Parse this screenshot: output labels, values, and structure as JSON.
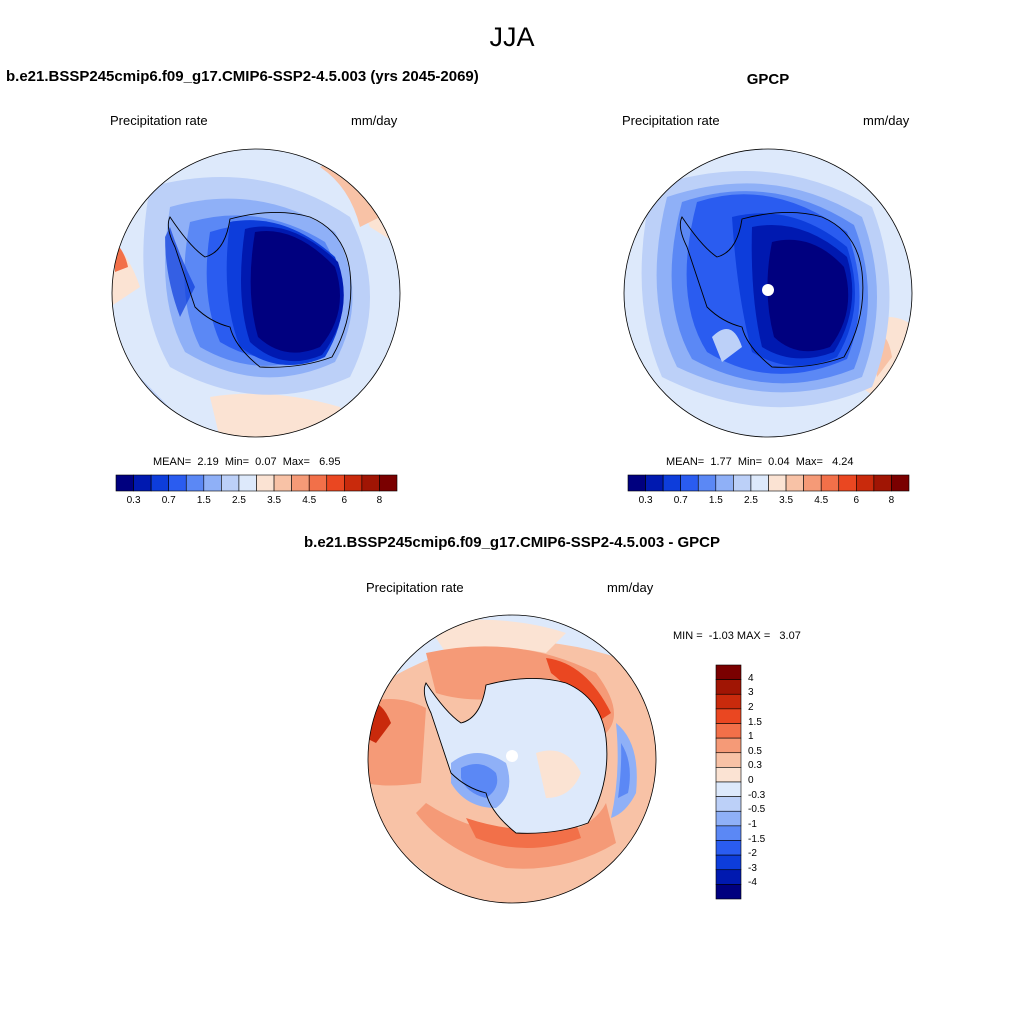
{
  "main_title": "JJA",
  "panels": [
    {
      "title": "b.e21.BSSP245cmip6.f09_g17.CMIP6-SSP2-4.5.003 (yrs 2045-2069)",
      "variable": "Precipitation rate",
      "units": "mm/day",
      "stats": {
        "mean_label": "MEAN=",
        "mean": "2.19",
        "min_label": "Min=",
        "min": "0.07",
        "max_label": "Max=",
        "max": "6.95"
      }
    },
    {
      "title": "GPCP",
      "variable": "Precipitation rate",
      "units": "mm/day",
      "stats": {
        "mean_label": "MEAN=",
        "mean": "1.77",
        "min_label": "Min=",
        "min": "0.04",
        "max_label": "Max=",
        "max": "4.24"
      }
    },
    {
      "title": "b.e21.BSSP245cmip6.f09_g17.CMIP6-SSP2-4.5.003 - GPCP",
      "variable": "Precipitation rate",
      "units": "mm/day",
      "stats": {
        "min_label": "MIN =",
        "min": "-1.03",
        "max_label": "MAX =",
        "max": "3.07"
      }
    }
  ],
  "colorbar_abs": {
    "colors": [
      "#00007f",
      "#0019b0",
      "#0d3ddb",
      "#2a5cf0",
      "#5b88f5",
      "#8fb0f7",
      "#bcd0f8",
      "#dde9fb",
      "#fbe3d3",
      "#f8c2a6",
      "#f59a77",
      "#f27049",
      "#ea4721",
      "#c92a0c",
      "#a01504",
      "#7a0000"
    ],
    "tick_labels": [
      "0.3",
      "0.7",
      "1.5",
      "2.5",
      "3.5",
      "4.5",
      "6",
      "8"
    ]
  },
  "colorbar_diff": {
    "colors": [
      "#7a0000",
      "#a01504",
      "#c92a0c",
      "#ea4721",
      "#f27049",
      "#f59a77",
      "#f8c2a6",
      "#fbe3d3",
      "#dde9fb",
      "#bcd0f8",
      "#8fb0f7",
      "#5b88f5",
      "#2a5cf0",
      "#0d3ddb",
      "#0019b0",
      "#00007f"
    ],
    "tick_labels": [
      "4",
      "3",
      "2",
      "1.5",
      "1",
      "0.5",
      "0.3",
      "0",
      "-0.3",
      "-0.5",
      "-1",
      "-1.5",
      "-2",
      "-3",
      "-4"
    ]
  },
  "chart_data": [
    {
      "type": "heatmap",
      "title": "b.e21.BSSP245cmip6.f09_g17.CMIP6-SSP2-4.5.003 (yrs 2045-2069)",
      "projection": "south polar stereographic",
      "variable": "Precipitation rate",
      "units": "mm/day",
      "levels": [
        0.3,
        0.7,
        1.5,
        2.5,
        3.5,
        4.5,
        6,
        8
      ],
      "mean": 2.19,
      "min": 0.07,
      "max": 6.95
    },
    {
      "type": "heatmap",
      "title": "GPCP",
      "projection": "south polar stereographic",
      "variable": "Precipitation rate",
      "units": "mm/day",
      "levels": [
        0.3,
        0.7,
        1.5,
        2.5,
        3.5,
        4.5,
        6,
        8
      ],
      "mean": 1.77,
      "min": 0.04,
      "max": 4.24
    },
    {
      "type": "heatmap",
      "title": "b.e21.BSSP245cmip6.f09_g17.CMIP6-SSP2-4.5.003 - GPCP",
      "projection": "south polar stereographic",
      "variable": "Precipitation rate",
      "units": "mm/day",
      "levels": [
        -4,
        -3,
        -2,
        -1.5,
        -1,
        -0.5,
        -0.3,
        0,
        0.3,
        0.5,
        1,
        1.5,
        2,
        3,
        4
      ],
      "min": -1.03,
      "max": 3.07
    }
  ]
}
